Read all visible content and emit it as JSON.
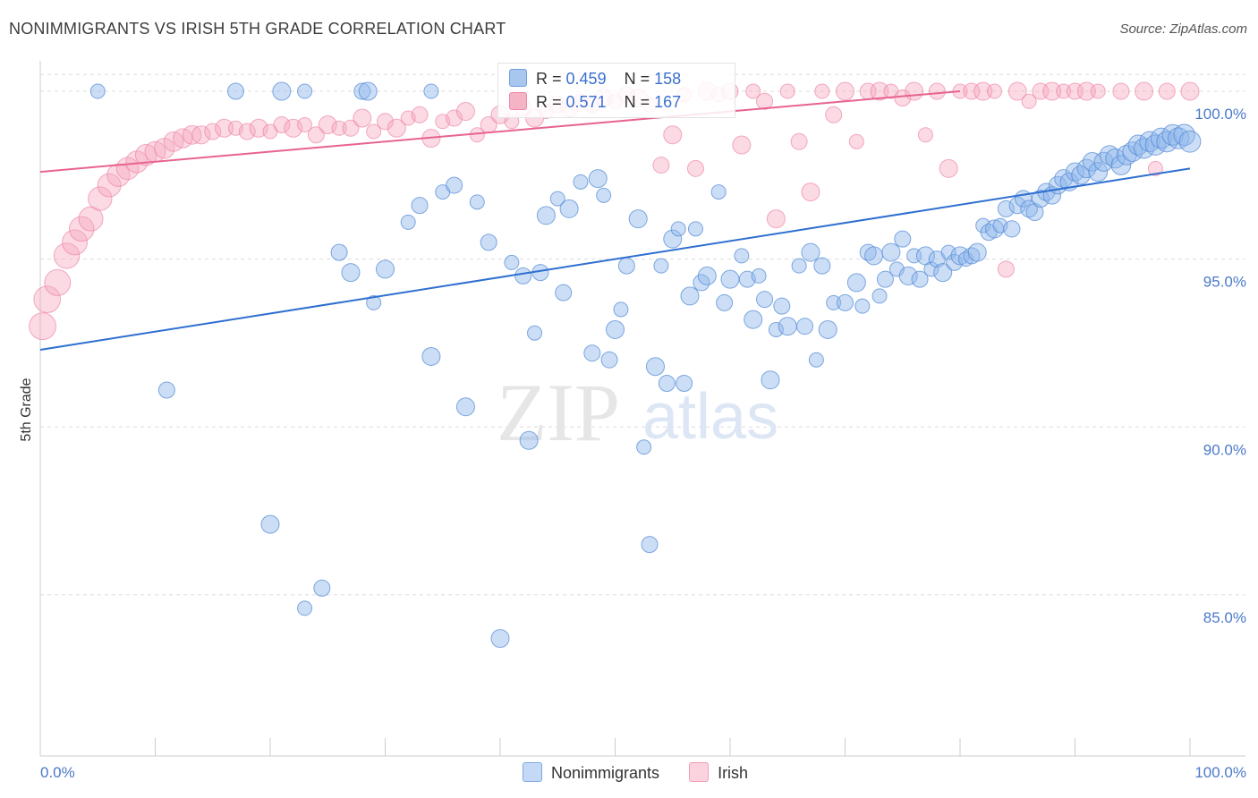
{
  "title": "NONIMMIGRANTS VS IRISH 5TH GRADE CORRELATION CHART",
  "source": "Source: ZipAtlas.com",
  "watermark": {
    "zip": "ZIP",
    "atlas": "atlas"
  },
  "legend": {
    "r_label": "R =",
    "n_label": "N =",
    "rows": [
      {
        "r": "0.459",
        "n": "158",
        "color": "#a9c6ef"
      },
      {
        "r": "0.571",
        "n": "167",
        "color": "#f5b3c6"
      }
    ]
  },
  "chart_data": {
    "type": "scatter",
    "title": "NONIMMIGRANTS VS IRISH 5TH GRADE CORRELATION CHART",
    "xlabel": "",
    "ylabel": "5th Grade",
    "xlim": [
      0,
      100
    ],
    "ylim": [
      80.2,
      100.8
    ],
    "x_tick_labels": [
      "0.0%",
      "100.0%"
    ],
    "y_ticks": [
      85,
      90,
      95,
      100
    ],
    "y_tick_labels": [
      "85.0%",
      "90.0%",
      "95.0%",
      "100.0%"
    ],
    "grid": true,
    "legend_position": "bottom-center",
    "series": [
      {
        "name": "Nonimmigrants",
        "color": "#6f9fe0",
        "trend_color": "#2e6fd0",
        "trend": {
          "x": [
            0,
            100
          ],
          "y": [
            92.3,
            97.7
          ]
        },
        "points": [
          [
            5,
            100
          ],
          [
            17,
            100
          ],
          [
            21,
            100
          ],
          [
            23,
            100
          ],
          [
            28,
            100
          ],
          [
            28.5,
            100
          ],
          [
            34,
            100
          ],
          [
            11,
            91.1
          ],
          [
            20,
            87.1
          ],
          [
            23,
            84.6
          ],
          [
            24.5,
            85.2
          ],
          [
            30,
            94.7
          ],
          [
            29,
            93.7
          ],
          [
            26,
            95.2
          ],
          [
            27,
            94.6
          ],
          [
            32,
            96.1
          ],
          [
            33,
            96.6
          ],
          [
            34,
            92.1
          ],
          [
            35,
            97.0
          ],
          [
            36,
            97.2
          ],
          [
            37,
            90.6
          ],
          [
            38,
            96.7
          ],
          [
            39,
            95.5
          ],
          [
            40,
            83.7
          ],
          [
            41,
            94.9
          ],
          [
            42,
            94.5
          ],
          [
            42.5,
            89.6
          ],
          [
            43,
            92.8
          ],
          [
            43.5,
            94.6
          ],
          [
            44,
            96.3
          ],
          [
            45,
            96.8
          ],
          [
            45.5,
            94.0
          ],
          [
            46,
            96.5
          ],
          [
            47,
            97.3
          ],
          [
            48,
            92.2
          ],
          [
            48.5,
            97.4
          ],
          [
            49,
            96.9
          ],
          [
            49.5,
            92.0
          ],
          [
            50,
            92.9
          ],
          [
            50.5,
            93.5
          ],
          [
            51,
            94.8
          ],
          [
            52,
            96.2
          ],
          [
            52.5,
            89.4
          ],
          [
            53,
            86.5
          ],
          [
            53.5,
            91.8
          ],
          [
            54,
            94.8
          ],
          [
            54.5,
            91.3
          ],
          [
            55,
            95.6
          ],
          [
            55.5,
            95.9
          ],
          [
            56,
            91.3
          ],
          [
            56.5,
            93.9
          ],
          [
            57,
            95.9
          ],
          [
            57.5,
            94.3
          ],
          [
            58,
            94.5
          ],
          [
            59,
            97.0
          ],
          [
            59.5,
            93.7
          ],
          [
            60,
            94.4
          ],
          [
            61,
            95.1
          ],
          [
            61.5,
            94.4
          ],
          [
            62,
            93.2
          ],
          [
            62.5,
            94.5
          ],
          [
            63,
            93.8
          ],
          [
            63.5,
            91.4
          ],
          [
            64,
            92.9
          ],
          [
            64.5,
            93.6
          ],
          [
            65,
            93.0
          ],
          [
            66,
            94.8
          ],
          [
            66.5,
            93.0
          ],
          [
            67,
            95.2
          ],
          [
            67.5,
            92.0
          ],
          [
            68,
            94.8
          ],
          [
            68.5,
            92.9
          ],
          [
            69,
            93.7
          ],
          [
            70,
            93.7
          ],
          [
            71,
            94.3
          ],
          [
            71.5,
            93.6
          ],
          [
            72,
            95.2
          ],
          [
            72.5,
            95.1
          ],
          [
            73,
            93.9
          ],
          [
            73.5,
            94.4
          ],
          [
            74,
            95.2
          ],
          [
            74.5,
            94.7
          ],
          [
            75,
            95.6
          ],
          [
            75.5,
            94.5
          ],
          [
            76,
            95.1
          ],
          [
            76.5,
            94.4
          ],
          [
            77,
            95.1
          ],
          [
            77.5,
            94.7
          ],
          [
            78,
            95.0
          ],
          [
            78.5,
            94.6
          ],
          [
            79,
            95.2
          ],
          [
            79.5,
            94.9
          ],
          [
            80,
            95.1
          ],
          [
            80.5,
            95.0
          ],
          [
            81,
            95.1
          ],
          [
            81.5,
            95.2
          ],
          [
            82,
            96.0
          ],
          [
            82.5,
            95.8
          ],
          [
            83,
            95.9
          ],
          [
            83.5,
            96.0
          ],
          [
            84,
            96.5
          ],
          [
            84.5,
            95.9
          ],
          [
            85,
            96.6
          ],
          [
            85.5,
            96.8
          ],
          [
            86,
            96.5
          ],
          [
            86.5,
            96.4
          ],
          [
            87,
            96.8
          ],
          [
            87.5,
            97.0
          ],
          [
            88,
            96.9
          ],
          [
            88.5,
            97.2
          ],
          [
            89,
            97.4
          ],
          [
            89.5,
            97.3
          ],
          [
            90,
            97.6
          ],
          [
            90.5,
            97.5
          ],
          [
            91,
            97.7
          ],
          [
            91.5,
            97.9
          ],
          [
            92,
            97.6
          ],
          [
            92.5,
            97.9
          ],
          [
            93,
            98.1
          ],
          [
            93.5,
            98.0
          ],
          [
            94,
            97.8
          ],
          [
            94.5,
            98.1
          ],
          [
            95,
            98.2
          ],
          [
            95.5,
            98.4
          ],
          [
            96,
            98.3
          ],
          [
            96.5,
            98.5
          ],
          [
            97,
            98.4
          ],
          [
            97.5,
            98.6
          ],
          [
            98,
            98.5
          ],
          [
            98.5,
            98.7
          ],
          [
            99,
            98.6
          ],
          [
            99.5,
            98.7
          ],
          [
            100,
            98.5
          ]
        ]
      },
      {
        "name": "Irish",
        "color": "#f4a0b9",
        "trend_color": "#e8638f",
        "trend": {
          "x": [
            0,
            80
          ],
          "y": [
            97.6,
            100.0
          ]
        },
        "points": [
          [
            0.2,
            93.0
          ],
          [
            0.6,
            93.8
          ],
          [
            1.5,
            94.3
          ],
          [
            2.3,
            95.1
          ],
          [
            3.0,
            95.5
          ],
          [
            3.6,
            95.9
          ],
          [
            4.4,
            96.2
          ],
          [
            5.2,
            96.8
          ],
          [
            6.0,
            97.2
          ],
          [
            6.8,
            97.5
          ],
          [
            7.6,
            97.7
          ],
          [
            8.4,
            97.9
          ],
          [
            9.2,
            98.1
          ],
          [
            10.0,
            98.2
          ],
          [
            10.8,
            98.3
          ],
          [
            11.6,
            98.5
          ],
          [
            12.4,
            98.6
          ],
          [
            13.2,
            98.7
          ],
          [
            14,
            98.7
          ],
          [
            15,
            98.8
          ],
          [
            16,
            98.9
          ],
          [
            17,
            98.9
          ],
          [
            18,
            98.8
          ],
          [
            19,
            98.9
          ],
          [
            20,
            98.8
          ],
          [
            21,
            99.0
          ],
          [
            22,
            98.9
          ],
          [
            23,
            99.0
          ],
          [
            24,
            98.7
          ],
          [
            25,
            99.0
          ],
          [
            26,
            98.9
          ],
          [
            27,
            98.9
          ],
          [
            28,
            99.2
          ],
          [
            29,
            98.8
          ],
          [
            30,
            99.1
          ],
          [
            31,
            98.9
          ],
          [
            32,
            99.2
          ],
          [
            33,
            99.3
          ],
          [
            34,
            98.6
          ],
          [
            35,
            99.1
          ],
          [
            36,
            99.2
          ],
          [
            37,
            99.4
          ],
          [
            38,
            98.7
          ],
          [
            39,
            99.0
          ],
          [
            40,
            99.3
          ],
          [
            41,
            99.1
          ],
          [
            42,
            99.5
          ],
          [
            43,
            99.2
          ],
          [
            44,
            99.4
          ],
          [
            45,
            99.6
          ],
          [
            46,
            99.5
          ],
          [
            47,
            99.7
          ],
          [
            48,
            99.6
          ],
          [
            49,
            99.8
          ],
          [
            50,
            99.7
          ],
          [
            51,
            99.9
          ],
          [
            52,
            99.8
          ],
          [
            53,
            99.6
          ],
          [
            54,
            97.8
          ],
          [
            55,
            98.7
          ],
          [
            56,
            99.9
          ],
          [
            57,
            97.7
          ],
          [
            58,
            100
          ],
          [
            59,
            99.9
          ],
          [
            60,
            100
          ],
          [
            61,
            98.4
          ],
          [
            62,
            100
          ],
          [
            63,
            99.7
          ],
          [
            64,
            96.2
          ],
          [
            65,
            100
          ],
          [
            66,
            98.5
          ],
          [
            67,
            97.0
          ],
          [
            68,
            100
          ],
          [
            69,
            99.3
          ],
          [
            70,
            100
          ],
          [
            71,
            98.5
          ],
          [
            72,
            100
          ],
          [
            73,
            100
          ],
          [
            74,
            100
          ],
          [
            75,
            99.8
          ],
          [
            76,
            100
          ],
          [
            77,
            98.7
          ],
          [
            78,
            100
          ],
          [
            79,
            97.7
          ],
          [
            80,
            100
          ],
          [
            81,
            100
          ],
          [
            82,
            100
          ],
          [
            83,
            100
          ],
          [
            84,
            94.7
          ],
          [
            85,
            100
          ],
          [
            86,
            99.7
          ],
          [
            87,
            100
          ],
          [
            88,
            100
          ],
          [
            89,
            100
          ],
          [
            90,
            100
          ],
          [
            91,
            100
          ],
          [
            92,
            100
          ],
          [
            94,
            100
          ],
          [
            96,
            100
          ],
          [
            97,
            97.7
          ],
          [
            98,
            100
          ],
          [
            100,
            100
          ]
        ]
      }
    ]
  }
}
